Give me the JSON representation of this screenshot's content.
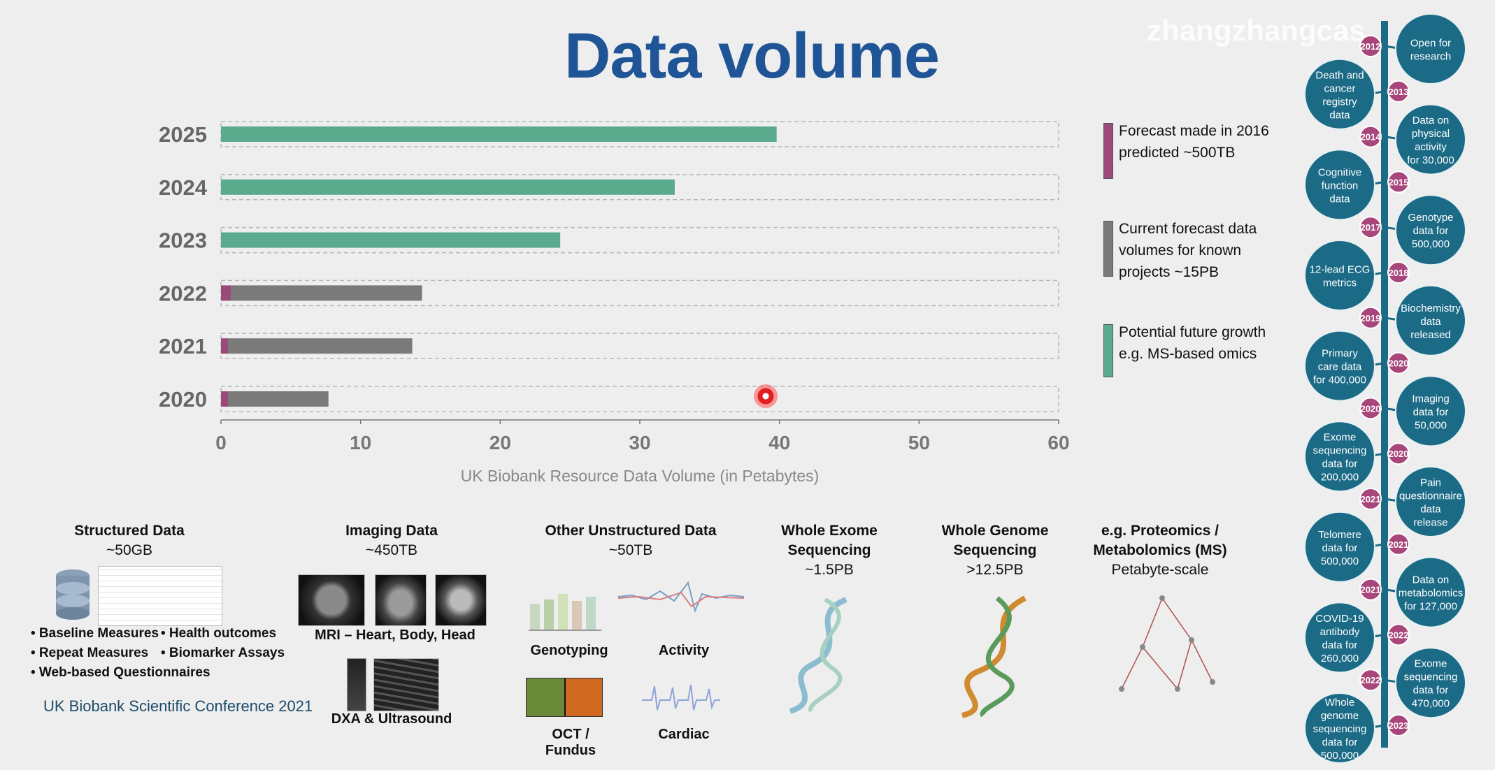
{
  "title": "Data volume",
  "watermark": "zhangzhangcas",
  "chart_data": {
    "type": "bar",
    "orientation": "horizontal",
    "stacked": true,
    "categories": [
      "2025",
      "2024",
      "2023",
      "2022",
      "2021",
      "2020"
    ],
    "series": [
      {
        "name": "Forecast made in 2016 predicted ~500TB",
        "color": "#9a4a7a",
        "values": [
          0,
          0,
          0,
          0.7,
          0.5,
          0.5
        ]
      },
      {
        "name": "Current forecast data volumes for known projects ~15PB",
        "color": "#7a7a7a",
        "values": [
          0,
          0,
          0,
          13.7,
          13.2,
          7.2
        ]
      },
      {
        "name": "Potential future growth e.g. MS-based omics",
        "color": "#5aaa8e",
        "values": [
          39.8,
          32.5,
          24.3,
          0,
          0,
          0
        ]
      }
    ],
    "xlabel": "UK Biobank Resource Data Volume (in Petabytes)",
    "xlim": [
      0,
      60
    ],
    "xticks": [
      "0",
      "10",
      "20",
      "30",
      "40",
      "50",
      "60"
    ],
    "legend_position": "right"
  },
  "legend": [
    {
      "text": "Forecast made in 2016 predicted ~500TB",
      "color": "#9a4a7a"
    },
    {
      "text": "Current forecast data volumes for known projects ~15PB",
      "color": "#7a7a7a"
    },
    {
      "text": "Potential future growth e.g. MS-based omics",
      "color": "#5aaa8e"
    }
  ],
  "categories": [
    {
      "title": "Structured Data",
      "sub": "~50GB"
    },
    {
      "title": "Imaging Data",
      "sub": "~450TB"
    },
    {
      "title": "Other Unstructured Data",
      "sub": "~50TB"
    },
    {
      "title": "Whole Exome Sequencing",
      "sub": "~1.5PB"
    },
    {
      "title": "Whole Genome Sequencing",
      "sub": ">12.5PB"
    },
    {
      "title": "e.g. Proteomics / Metabolomics (MS)",
      "sub": "Petabyte-scale"
    }
  ],
  "structured_bullets": [
    "• Baseline Measures",
    "• Health outcomes",
    "• Repeat Measures",
    "• Biomarker Assays",
    "• Web-based Questionnaires"
  ],
  "imaging_captions": [
    "MRI – Heart, Body, Head",
    "DXA & Ultrasound"
  ],
  "unstructured_captions": [
    "Genotyping",
    "Activity",
    "OCT / Fundus",
    "Cardiac"
  ],
  "conference": "UK Biobank Scientific Conference 2021",
  "timeline": [
    {
      "side": "right",
      "year": "2012",
      "text": "Open for research"
    },
    {
      "side": "left",
      "year": "2013",
      "text": "Death and cancer registry data"
    },
    {
      "side": "right",
      "year": "2014",
      "text": "Data on physical activity for 30,000"
    },
    {
      "side": "left",
      "year": "2015",
      "text": "Cognitive function data"
    },
    {
      "side": "right",
      "year": "2017",
      "text": "Genotype data for 500,000"
    },
    {
      "side": "left",
      "year": "2018",
      "text": "12-lead ECG metrics"
    },
    {
      "side": "right",
      "year": "2019",
      "text": "Biochemistry data released"
    },
    {
      "side": "left",
      "year": "2020",
      "text": "Primary care data for 400,000"
    },
    {
      "side": "right",
      "year": "2020",
      "text": "Imaging data for 50,000"
    },
    {
      "side": "left",
      "year": "2020",
      "text": "Exome sequencing data for 200,000"
    },
    {
      "side": "right",
      "year": "2021",
      "text": "Pain questionnaire data release"
    },
    {
      "side": "left",
      "year": "2021",
      "text": "Telomere data for 500,000"
    },
    {
      "side": "right",
      "year": "2021",
      "text": "Data on metabolomics for 127,000"
    },
    {
      "side": "left",
      "year": "2022",
      "text": "COVID-19 antibody data for 260,000"
    },
    {
      "side": "right",
      "year": "2022",
      "text": "Exome sequencing data for 470,000"
    },
    {
      "side": "left",
      "year": "2023",
      "text": "Whole genome sequencing data for 500,000"
    }
  ]
}
